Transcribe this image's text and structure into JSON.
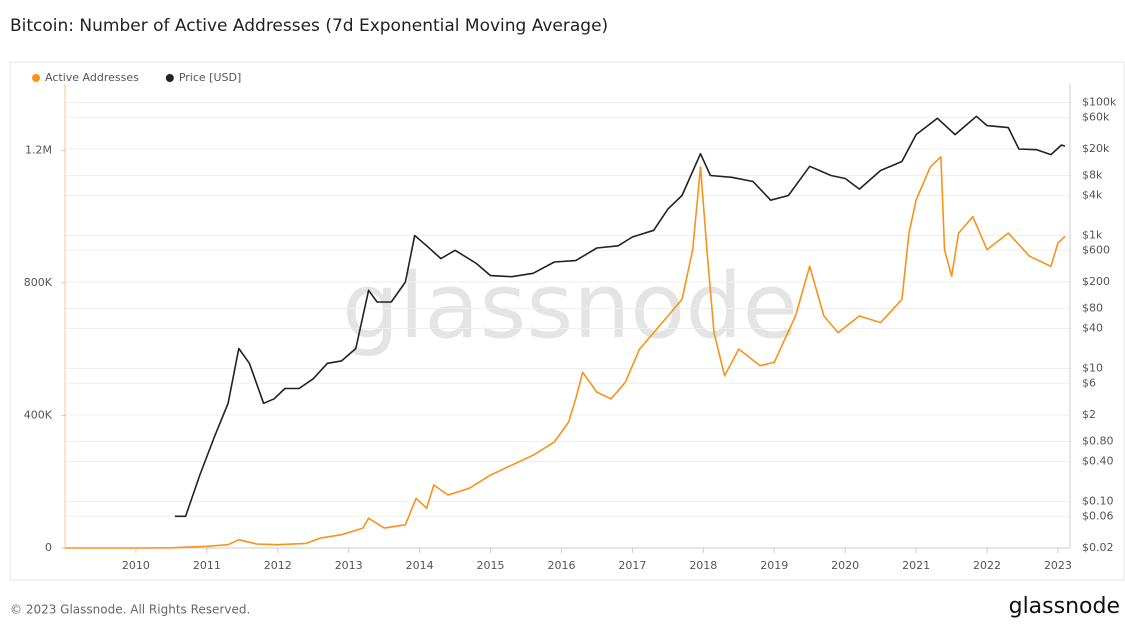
{
  "chart_data": {
    "type": "line",
    "title": "Bitcoin: Number of Active Addresses (7d Exponential Moving Average)",
    "watermark": "glassnode",
    "copyright": "© 2023 Glassnode. All Rights Reserved.",
    "brand": "glassnode",
    "legend": "top-left",
    "grid": true,
    "y2log": true,
    "xlim": [
      2009,
      2023.17
    ],
    "xticks": [
      2010,
      2011,
      2012,
      2013,
      2014,
      2015,
      2016,
      2017,
      2018,
      2019,
      2020,
      2021,
      2022,
      2023
    ],
    "ylim": [
      0,
      1400000
    ],
    "yticks": [
      0,
      {
        "value": 400000,
        "label": "400K"
      },
      {
        "value": 800000,
        "label": "800K"
      },
      {
        "value": 1200000,
        "label": "1.2M"
      }
    ],
    "y2lim": [
      0.02,
      190000
    ],
    "y2ticks": [
      {
        "value": 100000,
        "label": "$100k"
      },
      {
        "value": 60000,
        "label": "$60k"
      },
      {
        "value": 20000,
        "label": "$20k"
      },
      {
        "value": 8000,
        "label": "$8k"
      },
      {
        "value": 4000,
        "label": "$4k"
      },
      {
        "value": 1000,
        "label": "$1k"
      },
      {
        "value": 600,
        "label": "$600"
      },
      {
        "value": 200,
        "label": "$200"
      },
      {
        "value": 80,
        "label": "$80"
      },
      {
        "value": 40,
        "label": "$40"
      },
      {
        "value": 10,
        "label": "$10"
      },
      {
        "value": 6,
        "label": "$6"
      },
      {
        "value": 2,
        "label": "$2"
      },
      {
        "value": 0.8,
        "label": "$0.80"
      },
      {
        "value": 0.4,
        "label": "$0.40"
      },
      {
        "value": 0.1,
        "label": "$0.10"
      },
      {
        "value": 0.06,
        "label": "$0.06"
      },
      {
        "value": 0.02,
        "label": "$0.02"
      }
    ],
    "series": [
      {
        "name": "Active Addresses",
        "color": "#f7931a",
        "x": [
          2009.0,
          2010.0,
          2010.5,
          2011.0,
          2011.3,
          2011.45,
          2011.7,
          2012.0,
          2012.4,
          2012.6,
          2012.9,
          2013.2,
          2013.28,
          2013.5,
          2013.8,
          2013.95,
          2014.1,
          2014.2,
          2014.4,
          2014.7,
          2015.0,
          2015.3,
          2015.6,
          2015.9,
          2016.1,
          2016.2,
          2016.3,
          2016.5,
          2016.7,
          2016.9,
          2017.1,
          2017.3,
          2017.5,
          2017.7,
          2017.85,
          2017.96,
          2018.05,
          2018.15,
          2018.3,
          2018.5,
          2018.8,
          2019.0,
          2019.3,
          2019.5,
          2019.7,
          2019.9,
          2020.2,
          2020.5,
          2020.8,
          2020.9,
          2021.0,
          2021.2,
          2021.35,
          2021.4,
          2021.5,
          2021.6,
          2021.8,
          2022.0,
          2022.3,
          2022.6,
          2022.9,
          2023.0,
          2023.1
        ],
        "values": [
          0,
          0,
          500,
          5000,
          10000,
          25000,
          12000,
          10000,
          14000,
          30000,
          40000,
          60000,
          90000,
          60000,
          70000,
          150000,
          120000,
          190000,
          160000,
          180000,
          220000,
          250000,
          280000,
          320000,
          380000,
          450000,
          530000,
          470000,
          450000,
          500000,
          600000,
          650000,
          700000,
          750000,
          900000,
          1150000,
          900000,
          650000,
          520000,
          600000,
          550000,
          560000,
          700000,
          850000,
          700000,
          650000,
          700000,
          680000,
          750000,
          950000,
          1050000,
          1150000,
          1180000,
          900000,
          820000,
          950000,
          1000000,
          900000,
          950000,
          880000,
          850000,
          920000,
          940000
        ]
      },
      {
        "name": "Price [USD]",
        "color": "#222222",
        "axis": "y2",
        "x": [
          2010.55,
          2010.7,
          2010.9,
          2011.1,
          2011.3,
          2011.45,
          2011.6,
          2011.8,
          2011.95,
          2012.1,
          2012.3,
          2012.5,
          2012.7,
          2012.9,
          2013.1,
          2013.28,
          2013.4,
          2013.6,
          2013.8,
          2013.93,
          2014.1,
          2014.3,
          2014.5,
          2014.8,
          2015.0,
          2015.3,
          2015.6,
          2015.9,
          2016.2,
          2016.5,
          2016.8,
          2017.0,
          2017.3,
          2017.5,
          2017.7,
          2017.96,
          2018.1,
          2018.4,
          2018.7,
          2018.95,
          2019.2,
          2019.5,
          2019.8,
          2020.0,
          2020.2,
          2020.5,
          2020.8,
          2021.0,
          2021.3,
          2021.55,
          2021.85,
          2022.0,
          2022.3,
          2022.45,
          2022.7,
          2022.9,
          2023.05,
          2023.1
        ],
        "values": [
          0.06,
          0.06,
          0.25,
          0.9,
          3,
          20,
          12,
          3,
          3.5,
          5,
          5,
          7,
          12,
          13,
          20,
          150,
          100,
          100,
          200,
          1000,
          700,
          450,
          600,
          380,
          250,
          240,
          270,
          400,
          420,
          650,
          700,
          950,
          1200,
          2500,
          4000,
          17000,
          8000,
          7500,
          6500,
          3400,
          4000,
          11000,
          8000,
          7200,
          5000,
          9500,
          13000,
          33000,
          58000,
          33000,
          62000,
          45000,
          42000,
          20000,
          19500,
          16500,
          23000,
          22000
        ]
      }
    ]
  }
}
